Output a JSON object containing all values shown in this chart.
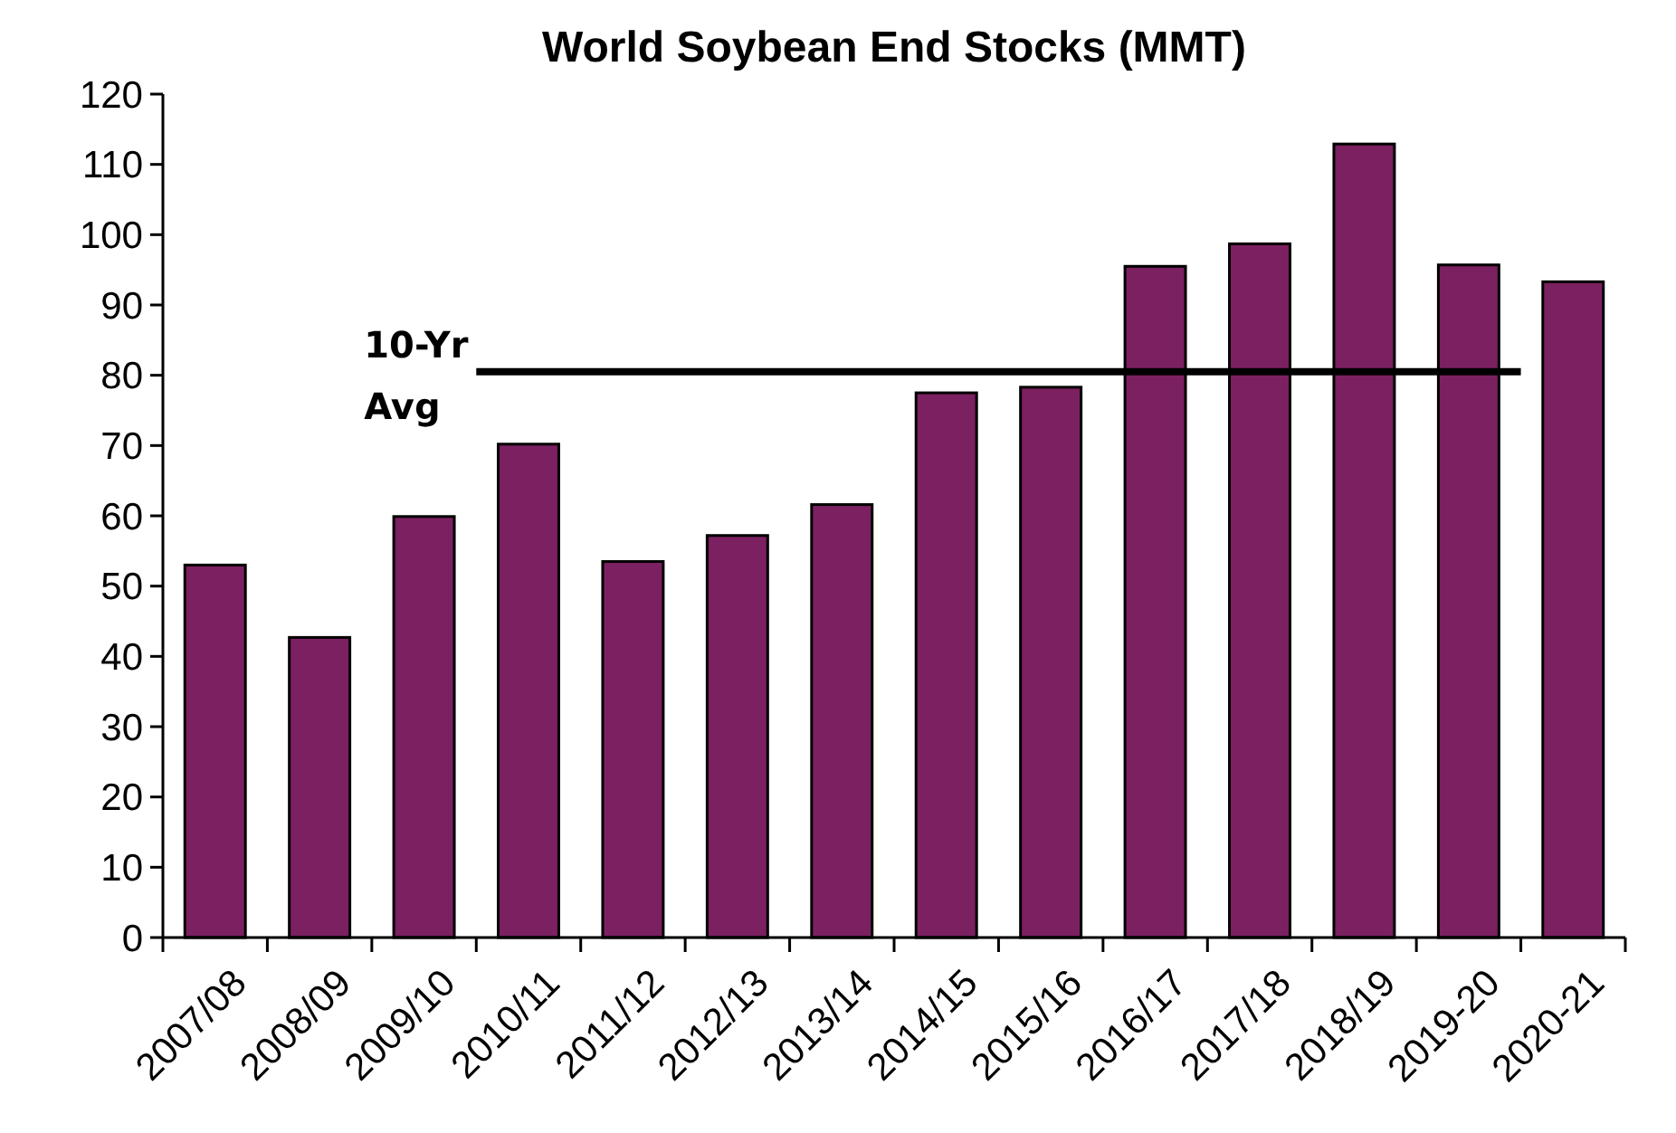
{
  "chart_data": {
    "type": "bar",
    "title": "World Soybean End Stocks (MMT)",
    "categories": [
      "2007/08",
      "2008/09",
      "2009/10",
      "2010/11",
      "2011/12",
      "2012/13",
      "2013/14",
      "2014/15",
      "2015/16",
      "2016/17",
      "2017/18",
      "2018/19",
      "2019-20",
      "2020-21"
    ],
    "values": [
      53,
      42.7,
      59.9,
      70.2,
      53.5,
      57.2,
      61.6,
      77.5,
      78.3,
      95.5,
      98.7,
      112.9,
      95.7,
      93.3
    ],
    "color": "#7b2060",
    "ylim": [
      0,
      120
    ],
    "yticks": [
      0,
      10,
      20,
      30,
      40,
      50,
      60,
      70,
      80,
      90,
      100,
      110,
      120
    ],
    "grid": false,
    "ref_lines": [
      {
        "axis": "y",
        "value": 80.5,
        "label": "10-Yr Avg",
        "color": "#000000"
      }
    ]
  }
}
